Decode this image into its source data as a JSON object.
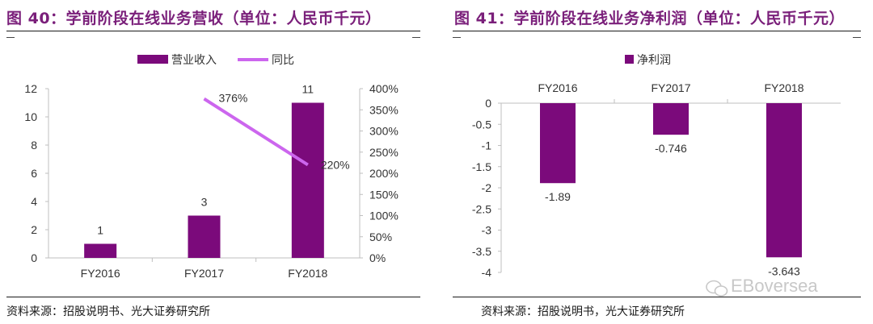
{
  "left_panel": {
    "title": "图 40：学前阶段在线业务营收（单位：人民币千元）",
    "source": "资料来源：招股说明书、光大证券研究所"
  },
  "right_panel": {
    "title": "图 41：学前阶段在线业务净利润（单位：人民币千元）",
    "source": "资料来源：招股说明书，光大证券研究所"
  },
  "watermark": "EBoversea",
  "colors": {
    "bar": "#7b0a7b",
    "line": "#cc66ee",
    "title": "#7a1f7a"
  },
  "chart_data": [
    {
      "type": "bar",
      "title": "图 40：学前阶段在线业务营收（单位：人民币千元）",
      "categories": [
        "FY2016",
        "FY2017",
        "FY2018"
      ],
      "series": [
        {
          "name": "营业收入",
          "type": "bar",
          "axis": "left",
          "values": [
            1,
            3,
            11
          ],
          "labels": [
            "1",
            "3",
            "11"
          ]
        },
        {
          "name": "同比",
          "type": "line",
          "axis": "right",
          "values": [
            null,
            376,
            220
          ],
          "labels": [
            "",
            "376%",
            "220%"
          ]
        }
      ],
      "ylim": [
        0,
        12
      ],
      "yticks": [
        "0",
        "2",
        "4",
        "6",
        "8",
        "10",
        "12"
      ],
      "y2lim": [
        0,
        400
      ],
      "y2ticks": [
        "0%",
        "50%",
        "100%",
        "150%",
        "200%",
        "250%",
        "300%",
        "350%",
        "400%"
      ],
      "legend": "top",
      "grid": false
    },
    {
      "type": "bar",
      "title": "图 41：学前阶段在线业务净利润（单位：人民币千元）",
      "categories": [
        "FY2016",
        "FY2017",
        "FY2018"
      ],
      "series": [
        {
          "name": "净利润",
          "values": [
            -1.89,
            -0.746,
            -3.643
          ],
          "labels": [
            "-1.89",
            "-0.746",
            "-3.643"
          ]
        }
      ],
      "ylim": [
        -4,
        0
      ],
      "yticks": [
        "0",
        "-0.5",
        "-1",
        "-1.5",
        "-2",
        "-2.5",
        "-3",
        "-3.5",
        "-4"
      ],
      "legend": "top",
      "grid": false
    }
  ]
}
